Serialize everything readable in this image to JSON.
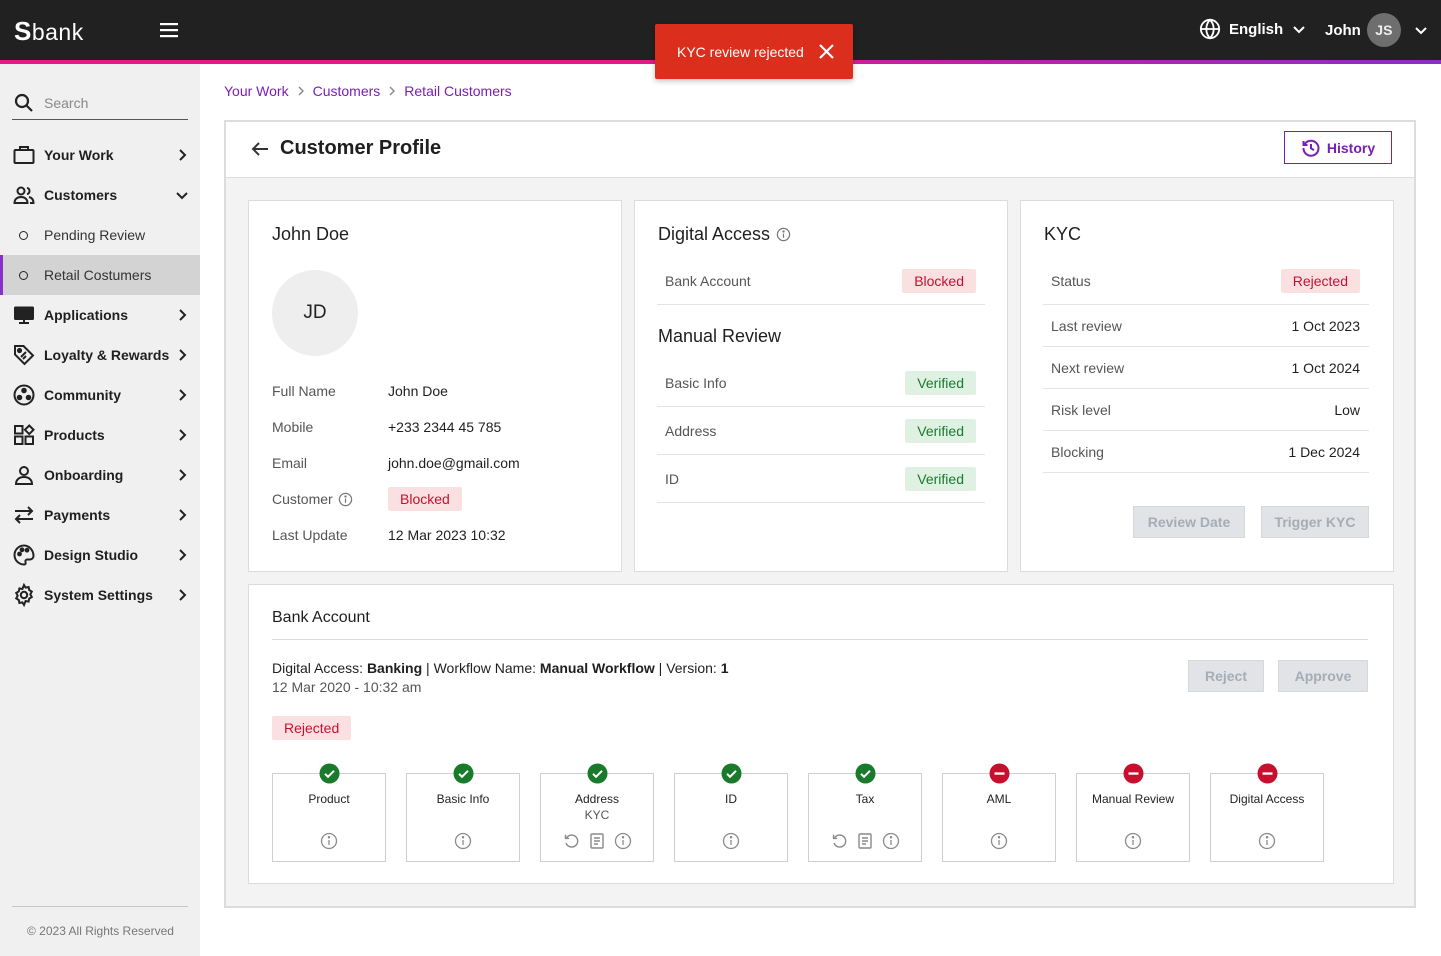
{
  "app": {
    "logo_s": "S",
    "logo_rest": "bank"
  },
  "header": {
    "language": "English",
    "user_name": "John",
    "user_initials": "JS"
  },
  "toast": {
    "message": "KYC review rejected"
  },
  "sidebar": {
    "search_placeholder": "Search",
    "items": [
      {
        "label": "Your Work",
        "icon": "briefcase-icon"
      },
      {
        "label": "Customers",
        "icon": "users-icon",
        "expanded": true,
        "children": [
          {
            "label": "Pending Review"
          },
          {
            "label": "Retail Costumers",
            "active": true
          }
        ]
      },
      {
        "label": "Applications",
        "icon": "monitor-icon"
      },
      {
        "label": "Loyalty & Rewards",
        "icon": "tag-icon"
      },
      {
        "label": "Community",
        "icon": "community-icon"
      },
      {
        "label": "Products",
        "icon": "products-icon"
      },
      {
        "label": "Onboarding",
        "icon": "user-icon"
      },
      {
        "label": "Payments",
        "icon": "transfer-icon"
      },
      {
        "label": "Design Studio",
        "icon": "palette-icon"
      },
      {
        "label": "System Settings",
        "icon": "gear-icon"
      }
    ],
    "copyright": "© 2023 All Rights Reserved"
  },
  "breadcrumb": [
    "Your Work",
    "Customers",
    "Retail Customers"
  ],
  "page": {
    "title": "Customer Profile",
    "history_label": "History"
  },
  "customer": {
    "name": "John Doe",
    "initials": "JD",
    "fields": [
      {
        "label": "Full Name",
        "value": "John Doe"
      },
      {
        "label": "Mobile",
        "value": "+233 2344 45 785"
      },
      {
        "label": "Email",
        "value": "john.doe@gmail.com"
      },
      {
        "label": "Customer",
        "value": "Blocked",
        "badge": "red",
        "info": true
      },
      {
        "label": "Last Update",
        "value": "12 Mar 2023 10:32"
      }
    ]
  },
  "digital_access": {
    "title": "Digital Access",
    "rows": [
      {
        "label": "Bank Account",
        "value": "Blocked",
        "badge": "red"
      }
    ],
    "manual_review_title": "Manual Review",
    "manual_rows": [
      {
        "label": "Basic Info",
        "value": "Verified",
        "badge": "green"
      },
      {
        "label": "Address",
        "value": "Verified",
        "badge": "green"
      },
      {
        "label": "ID",
        "value": "Verified",
        "badge": "green"
      }
    ]
  },
  "kyc": {
    "title": "KYC",
    "rows": [
      {
        "label": "Status",
        "value": "Rejected",
        "badge": "red"
      },
      {
        "label": "Last review",
        "value": "1 Oct 2023"
      },
      {
        "label": "Next review",
        "value": "1 Oct 2024"
      },
      {
        "label": "Risk level",
        "value": "Low"
      },
      {
        "label": "Blocking",
        "value": "1 Dec 2024"
      }
    ],
    "review_date_label": "Review Date",
    "trigger_label": "Trigger KYC"
  },
  "bank_account": {
    "title": "Bank Account",
    "digital_access_prefix": "Digital Access: ",
    "digital_access_value": "Banking",
    "workflow_prefix": " | Workflow Name: ",
    "workflow_value": "Manual Workflow",
    "version_prefix": " | Version: ",
    "version_value": "1",
    "date": "12 Mar 2020 - 10:32 am",
    "status": "Rejected",
    "reject_label": "Reject",
    "approve_label": "Approve",
    "steps": [
      {
        "name": "Product",
        "sub": "",
        "status": "success",
        "actions": [
          "info"
        ]
      },
      {
        "name": "Basic Info",
        "sub": "",
        "status": "success",
        "actions": [
          "info"
        ]
      },
      {
        "name": "Address",
        "sub": "KYC",
        "status": "success",
        "actions": [
          "refresh",
          "document",
          "info"
        ]
      },
      {
        "name": "ID",
        "sub": "",
        "status": "success",
        "actions": [
          "info"
        ]
      },
      {
        "name": "Tax",
        "sub": "",
        "status": "success",
        "actions": [
          "refresh",
          "document",
          "info"
        ]
      },
      {
        "name": "AML",
        "sub": "",
        "status": "failed",
        "actions": [
          "info"
        ]
      },
      {
        "name": "Manual Review",
        "sub": "",
        "status": "failed",
        "actions": [
          "info"
        ]
      },
      {
        "name": "Digital Access",
        "sub": "",
        "status": "failed",
        "actions": [
          "info"
        ]
      }
    ]
  },
  "colors": {
    "accent": "#7a1fb3",
    "danger": "#c8102e",
    "success": "#1a7a2c",
    "toast": "#dc2e1c"
  }
}
